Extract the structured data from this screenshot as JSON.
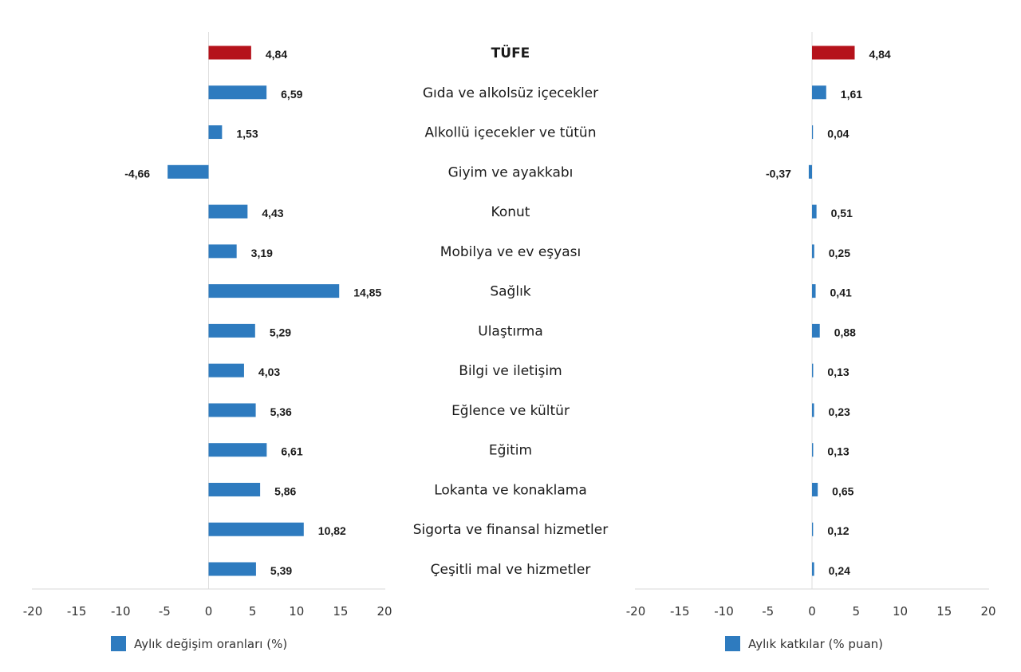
{
  "chart_data": [
    {
      "type": "bar",
      "orientation": "horizontal",
      "categories": [
        "TÜFE",
        "Gıda ve alkolsüz içecekler",
        "Alkollü içecekler ve tütün",
        "Giyim ve ayakkabı",
        "Konut",
        "Mobilya ve ev eşyası",
        "Sağlık",
        "Ulaştırma",
        "Bilgi ve iletişim",
        "Eğlence ve kültür",
        "Eğitim",
        "Lokanta ve konaklama",
        "Sigorta ve finansal hizmetler",
        "Çeşitli mal ve hizmetler"
      ],
      "series": [
        {
          "name": "Aylık değişim oranları (%)",
          "values": [
            4.84,
            6.59,
            1.53,
            -4.66,
            4.43,
            3.19,
            14.85,
            5.29,
            4.03,
            5.36,
            6.61,
            5.86,
            10.82,
            5.39
          ]
        }
      ],
      "data_labels": [
        "4,84",
        "6,59",
        "1,53",
        "-4,66",
        "4,43",
        "3,19",
        "14,85",
        "5,29",
        "4,03",
        "5,36",
        "6,61",
        "5,86",
        "10,82",
        "5,39"
      ],
      "xlim": [
        -20,
        20
      ],
      "ticks": [
        "-20",
        "-15",
        "-10",
        "-5",
        "0",
        "5",
        "10",
        "15",
        "20"
      ],
      "legend": "bottom",
      "grid": false,
      "colors": {
        "highlight": "#b5121b",
        "bar": "#2e7bbf"
      }
    },
    {
      "type": "bar",
      "orientation": "horizontal",
      "categories": [
        "TÜFE",
        "Gıda ve alkolsüz içecekler",
        "Alkollü içecekler ve tütün",
        "Giyim ve ayakkabı",
        "Konut",
        "Mobilya ve ev eşyası",
        "Sağlık",
        "Ulaştırma",
        "Bilgi ve iletişim",
        "Eğlence ve kültür",
        "Eğitim",
        "Lokanta ve konaklama",
        "Sigorta ve finansal hizmetler",
        "Çeşitli mal ve hizmetler"
      ],
      "series": [
        {
          "name": "Aylık katkılar (% puan)",
          "values": [
            4.84,
            1.61,
            0.04,
            -0.37,
            0.51,
            0.25,
            0.41,
            0.88,
            0.13,
            0.23,
            0.13,
            0.65,
            0.12,
            0.24
          ]
        }
      ],
      "data_labels": [
        "4,84",
        "1,61",
        "0,04",
        "-0,37",
        "0,51",
        "0,25",
        "0,41",
        "0,88",
        "0,13",
        "0,23",
        "0,13",
        "0,65",
        "0,12",
        "0,24"
      ],
      "xlim": [
        -20,
        20
      ],
      "ticks": [
        "-20",
        "-15",
        "-10",
        "-5",
        "0",
        "5",
        "10",
        "15",
        "20"
      ],
      "legend": "bottom",
      "grid": false,
      "colors": {
        "highlight": "#b5121b",
        "bar": "#2e7bbf"
      }
    }
  ]
}
